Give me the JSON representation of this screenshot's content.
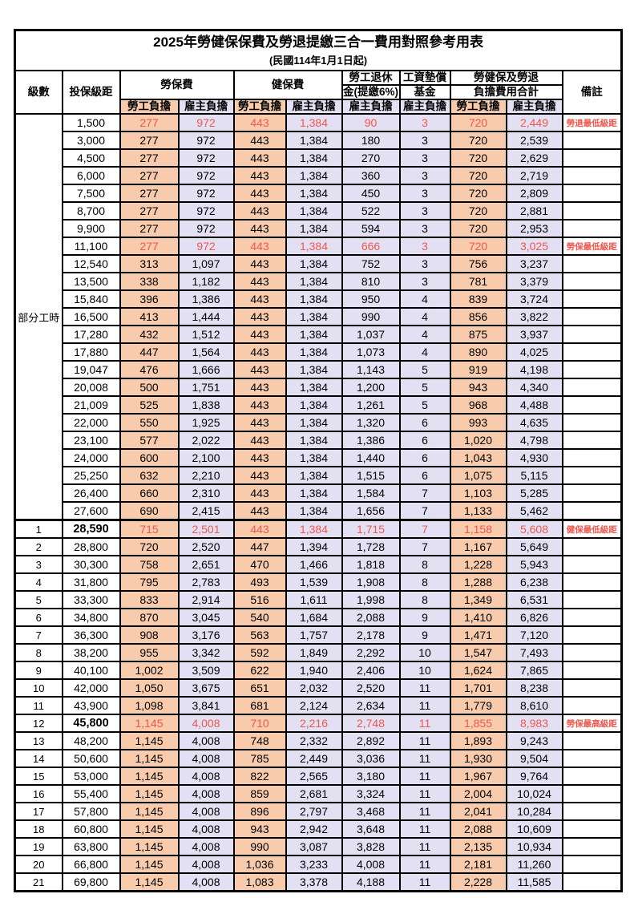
{
  "title": "2025年勞健保保費及勞退提繳三合一費用對照參考用表",
  "subtitle": "(民國114年1月1日起)",
  "columns": {
    "level": "級數",
    "bracket": "投保級距",
    "labor_insurance": "勞保費",
    "health_insurance": "健保費",
    "pension_line1": "勞工退休",
    "pension_line2": "金(提繳6%)",
    "wage_fund_line1": "工資墊償",
    "wage_fund_line2": "基金",
    "total_line1": "勞健保及勞退",
    "total_line2": "負擔費用合計",
    "remark": "備註",
    "employee_share": "勞工負擔",
    "employer_share": "雇主負擔"
  },
  "part_time_label": "部分工時",
  "colors": {
    "employee_bg": "#F8CBAD",
    "employer_bg": "#E2E0F2",
    "highlight_text": "#F2564C"
  },
  "rows": [
    {
      "level": "",
      "bracket": "1,500",
      "values": [
        "277",
        "972",
        "443",
        "1,384",
        "90",
        "3",
        "720",
        "2,449"
      ],
      "remark": "勞退最低級距",
      "red": true
    },
    {
      "level": "",
      "bracket": "3,000",
      "values": [
        "277",
        "972",
        "443",
        "1,384",
        "180",
        "3",
        "720",
        "2,539"
      ],
      "remark": "",
      "red": false
    },
    {
      "level": "",
      "bracket": "4,500",
      "values": [
        "277",
        "972",
        "443",
        "1,384",
        "270",
        "3",
        "720",
        "2,629"
      ],
      "remark": "",
      "red": false
    },
    {
      "level": "",
      "bracket": "6,000",
      "values": [
        "277",
        "972",
        "443",
        "1,384",
        "360",
        "3",
        "720",
        "2,719"
      ],
      "remark": "",
      "red": false
    },
    {
      "level": "",
      "bracket": "7,500",
      "values": [
        "277",
        "972",
        "443",
        "1,384",
        "450",
        "3",
        "720",
        "2,809"
      ],
      "remark": "",
      "red": false
    },
    {
      "level": "",
      "bracket": "8,700",
      "values": [
        "277",
        "972",
        "443",
        "1,384",
        "522",
        "3",
        "720",
        "2,881"
      ],
      "remark": "",
      "red": false
    },
    {
      "level": "",
      "bracket": "9,900",
      "values": [
        "277",
        "972",
        "443",
        "1,384",
        "594",
        "3",
        "720",
        "2,953"
      ],
      "remark": "",
      "red": false
    },
    {
      "level": "",
      "bracket": "11,100",
      "values": [
        "277",
        "972",
        "443",
        "1,384",
        "666",
        "3",
        "720",
        "3,025"
      ],
      "remark": "勞保最低級距",
      "red": true
    },
    {
      "level": "",
      "bracket": "12,540",
      "values": [
        "313",
        "1,097",
        "443",
        "1,384",
        "752",
        "3",
        "756",
        "3,237"
      ],
      "remark": "",
      "red": false
    },
    {
      "level": "",
      "bracket": "13,500",
      "values": [
        "338",
        "1,182",
        "443",
        "1,384",
        "810",
        "3",
        "781",
        "3,379"
      ],
      "remark": "",
      "red": false
    },
    {
      "level": "",
      "bracket": "15,840",
      "values": [
        "396",
        "1,386",
        "443",
        "1,384",
        "950",
        "4",
        "839",
        "3,724"
      ],
      "remark": "",
      "red": false
    },
    {
      "level": "",
      "bracket": "16,500",
      "values": [
        "413",
        "1,444",
        "443",
        "1,384",
        "990",
        "4",
        "856",
        "3,822"
      ],
      "remark": "",
      "red": false
    },
    {
      "level": "",
      "bracket": "17,280",
      "values": [
        "432",
        "1,512",
        "443",
        "1,384",
        "1,037",
        "4",
        "875",
        "3,937"
      ],
      "remark": "",
      "red": false
    },
    {
      "level": "",
      "bracket": "17,880",
      "values": [
        "447",
        "1,564",
        "443",
        "1,384",
        "1,073",
        "4",
        "890",
        "4,025"
      ],
      "remark": "",
      "red": false
    },
    {
      "level": "",
      "bracket": "19,047",
      "values": [
        "476",
        "1,666",
        "443",
        "1,384",
        "1,143",
        "5",
        "919",
        "4,198"
      ],
      "remark": "",
      "red": false
    },
    {
      "level": "",
      "bracket": "20,008",
      "values": [
        "500",
        "1,751",
        "443",
        "1,384",
        "1,200",
        "5",
        "943",
        "4,340"
      ],
      "remark": "",
      "red": false
    },
    {
      "level": "",
      "bracket": "21,009",
      "values": [
        "525",
        "1,838",
        "443",
        "1,384",
        "1,261",
        "5",
        "968",
        "4,488"
      ],
      "remark": "",
      "red": false
    },
    {
      "level": "",
      "bracket": "22,000",
      "values": [
        "550",
        "1,925",
        "443",
        "1,384",
        "1,320",
        "6",
        "993",
        "4,635"
      ],
      "remark": "",
      "red": false
    },
    {
      "level": "",
      "bracket": "23,100",
      "values": [
        "577",
        "2,022",
        "443",
        "1,384",
        "1,386",
        "6",
        "1,020",
        "4,798"
      ],
      "remark": "",
      "red": false
    },
    {
      "level": "",
      "bracket": "24,000",
      "values": [
        "600",
        "2,100",
        "443",
        "1,384",
        "1,440",
        "6",
        "1,043",
        "4,930"
      ],
      "remark": "",
      "red": false
    },
    {
      "level": "",
      "bracket": "25,250",
      "values": [
        "632",
        "2,210",
        "443",
        "1,384",
        "1,515",
        "6",
        "1,075",
        "5,115"
      ],
      "remark": "",
      "red": false
    },
    {
      "level": "",
      "bracket": "26,400",
      "values": [
        "660",
        "2,310",
        "443",
        "1,384",
        "1,584",
        "7",
        "1,103",
        "5,285"
      ],
      "remark": "",
      "red": false
    },
    {
      "level": "",
      "bracket": "27,600",
      "values": [
        "690",
        "2,415",
        "443",
        "1,384",
        "1,656",
        "7",
        "1,133",
        "5,462"
      ],
      "remark": "",
      "red": false
    },
    {
      "level": "1",
      "bracket": "28,590",
      "values": [
        "715",
        "2,501",
        "443",
        "1,384",
        "1,715",
        "7",
        "1,158",
        "5,608"
      ],
      "remark": "健保最低級距",
      "red": true
    },
    {
      "level": "2",
      "bracket": "28,800",
      "values": [
        "720",
        "2,520",
        "447",
        "1,394",
        "1,728",
        "7",
        "1,167",
        "5,649"
      ],
      "remark": "",
      "red": false
    },
    {
      "level": "3",
      "bracket": "30,300",
      "values": [
        "758",
        "2,651",
        "470",
        "1,466",
        "1,818",
        "8",
        "1,228",
        "5,943"
      ],
      "remark": "",
      "red": false
    },
    {
      "level": "4",
      "bracket": "31,800",
      "values": [
        "795",
        "2,783",
        "493",
        "1,539",
        "1,908",
        "8",
        "1,288",
        "6,238"
      ],
      "remark": "",
      "red": false
    },
    {
      "level": "5",
      "bracket": "33,300",
      "values": [
        "833",
        "2,914",
        "516",
        "1,611",
        "1,998",
        "8",
        "1,349",
        "6,531"
      ],
      "remark": "",
      "red": false
    },
    {
      "level": "6",
      "bracket": "34,800",
      "values": [
        "870",
        "3,045",
        "540",
        "1,684",
        "2,088",
        "9",
        "1,410",
        "6,826"
      ],
      "remark": "",
      "red": false
    },
    {
      "level": "7",
      "bracket": "36,300",
      "values": [
        "908",
        "3,176",
        "563",
        "1,757",
        "2,178",
        "9",
        "1,471",
        "7,120"
      ],
      "remark": "",
      "red": false
    },
    {
      "level": "8",
      "bracket": "38,200",
      "values": [
        "955",
        "3,342",
        "592",
        "1,849",
        "2,292",
        "10",
        "1,547",
        "7,493"
      ],
      "remark": "",
      "red": false
    },
    {
      "level": "9",
      "bracket": "40,100",
      "values": [
        "1,002",
        "3,509",
        "622",
        "1,940",
        "2,406",
        "10",
        "1,624",
        "7,865"
      ],
      "remark": "",
      "red": false
    },
    {
      "level": "10",
      "bracket": "42,000",
      "values": [
        "1,050",
        "3,675",
        "651",
        "2,032",
        "2,520",
        "11",
        "1,701",
        "8,238"
      ],
      "remark": "",
      "red": false
    },
    {
      "level": "11",
      "bracket": "43,900",
      "values": [
        "1,098",
        "3,841",
        "681",
        "2,124",
        "2,634",
        "11",
        "1,779",
        "8,610"
      ],
      "remark": "",
      "red": false
    },
    {
      "level": "12",
      "bracket": "45,800",
      "values": [
        "1,145",
        "4,008",
        "710",
        "2,216",
        "2,748",
        "11",
        "1,855",
        "8,983"
      ],
      "remark": "勞保最高級距",
      "red": true
    },
    {
      "level": "13",
      "bracket": "48,200",
      "values": [
        "1,145",
        "4,008",
        "748",
        "2,332",
        "2,892",
        "11",
        "1,893",
        "9,243"
      ],
      "remark": "",
      "red": false
    },
    {
      "level": "14",
      "bracket": "50,600",
      "values": [
        "1,145",
        "4,008",
        "785",
        "2,449",
        "3,036",
        "11",
        "1,930",
        "9,504"
      ],
      "remark": "",
      "red": false
    },
    {
      "level": "15",
      "bracket": "53,000",
      "values": [
        "1,145",
        "4,008",
        "822",
        "2,565",
        "3,180",
        "11",
        "1,967",
        "9,764"
      ],
      "remark": "",
      "red": false
    },
    {
      "level": "16",
      "bracket": "55,400",
      "values": [
        "1,145",
        "4,008",
        "859",
        "2,681",
        "3,324",
        "11",
        "2,004",
        "10,024"
      ],
      "remark": "",
      "red": false
    },
    {
      "level": "17",
      "bracket": "57,800",
      "values": [
        "1,145",
        "4,008",
        "896",
        "2,797",
        "3,468",
        "11",
        "2,041",
        "10,284"
      ],
      "remark": "",
      "red": false
    },
    {
      "level": "18",
      "bracket": "60,800",
      "values": [
        "1,145",
        "4,008",
        "943",
        "2,942",
        "3,648",
        "11",
        "2,088",
        "10,609"
      ],
      "remark": "",
      "red": false
    },
    {
      "level": "19",
      "bracket": "63,800",
      "values": [
        "1,145",
        "4,008",
        "990",
        "3,087",
        "3,828",
        "11",
        "2,135",
        "10,934"
      ],
      "remark": "",
      "red": false
    },
    {
      "level": "20",
      "bracket": "66,800",
      "values": [
        "1,145",
        "4,008",
        "1,036",
        "3,233",
        "4,008",
        "11",
        "2,181",
        "11,260"
      ],
      "remark": "",
      "red": false
    },
    {
      "level": "21",
      "bracket": "69,800",
      "values": [
        "1,145",
        "4,008",
        "1,083",
        "3,378",
        "4,188",
        "11",
        "2,228",
        "11,585"
      ],
      "remark": "",
      "red": false
    }
  ]
}
